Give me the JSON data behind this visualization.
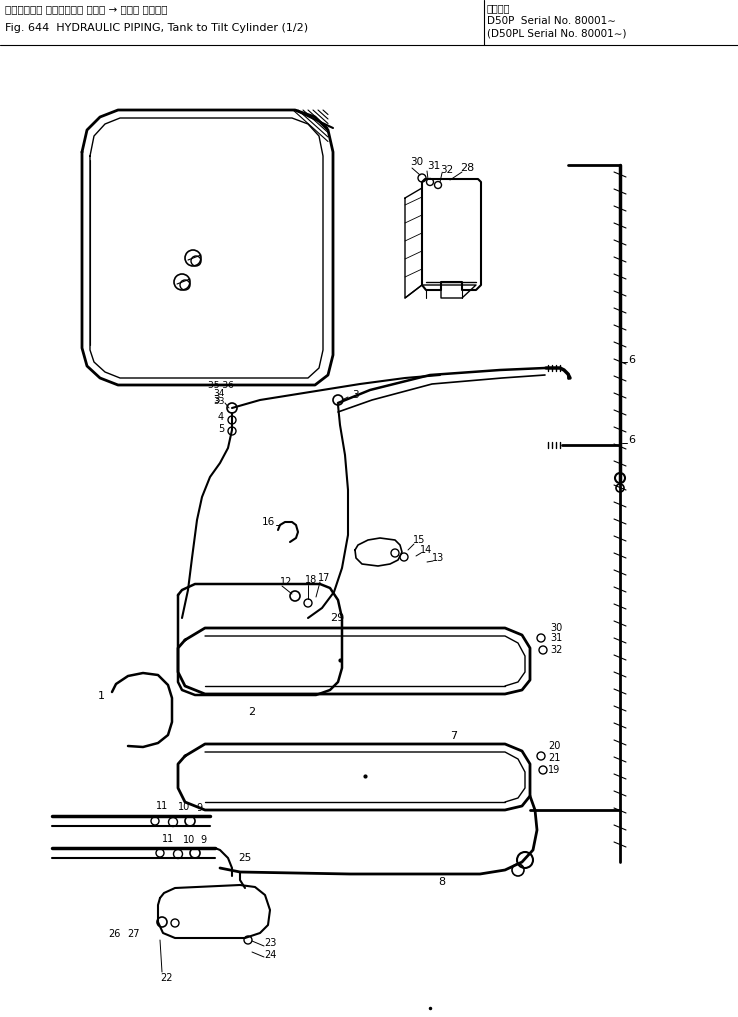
{
  "title_jp": "ハイドロック パイピング， タンク → チルト シリンダ",
  "title_en": "Fig. 644  HYDRAULIC PIPING, Tank to Tilt Cylinder (1/2)",
  "right_label": "適用号機",
  "right1": "D50P  Serial No. 80001∼",
  "right2": "(D50PL Serial No. 80001∼)",
  "bg": "#ffffff"
}
